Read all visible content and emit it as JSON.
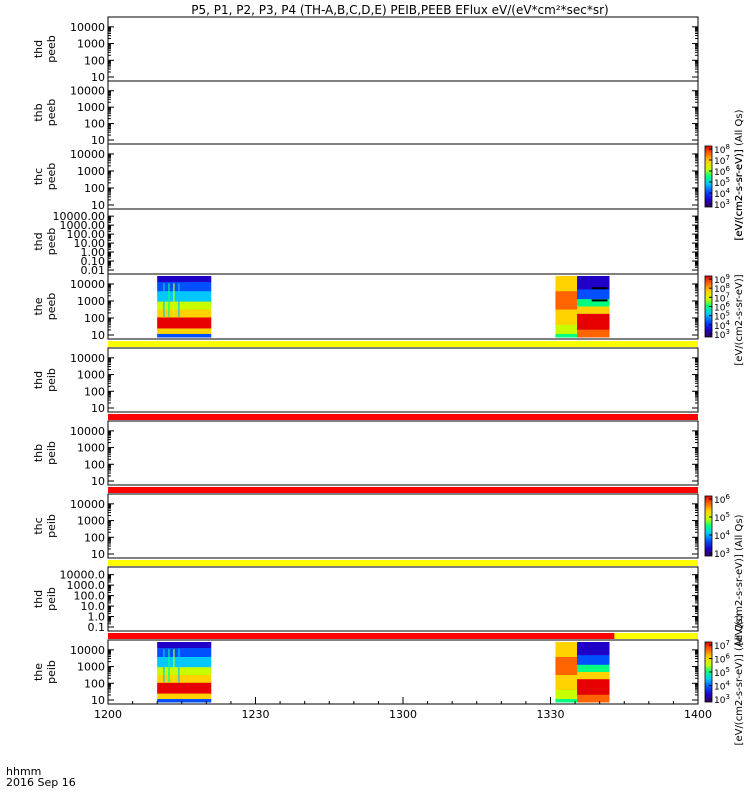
{
  "title": "P5, P1, P2, P3, P4 (TH-A,B,C,D,E) PEIB,PEEB EFlux eV/(eV*cm²*sec*sr)",
  "footer": {
    "time_label": "hhmm",
    "date_label": "2016 Sep 16"
  },
  "colorbar_units": {
    "thb_peeb": "[eV/(cm2-s-sr-eV)] (All Qs)",
    "thc_peeb": "[eV/(cm2-s-sr-eV)]",
    "the_peeb": "[eV/(cm2-s-sr-eV)]",
    "thc_peib": "[eV/(cm2-s-sr-eV)] (All Qs)",
    "the_peib": "[eV/(cm2-s-sr-eV)] (All Qs)"
  },
  "colors": {
    "flag_yellow": "#ffff00",
    "flag_red": "#ff0000",
    "colormap": [
      "#3a0064",
      "#1e00c8",
      "#0050ff",
      "#00c8ff",
      "#00ff80",
      "#c8ff00",
      "#ffd200",
      "#ff6400",
      "#e60000"
    ]
  },
  "chart_data": {
    "type": "heatmap",
    "xaxis": {
      "ticks": [
        "1200",
        "1230",
        "1300",
        "1330",
        "1400"
      ],
      "range": [
        "12:00",
        "14:00"
      ]
    },
    "panels": [
      {
        "label1": "thd",
        "label2": "peeb",
        "yscale": "log",
        "yticks": [
          "10",
          "100",
          "1000",
          "10000"
        ],
        "data": []
      },
      {
        "label1": "thb",
        "label2": "peeb",
        "yscale": "log",
        "yticks": [
          "10",
          "100",
          "1000",
          "10000"
        ],
        "data": []
      },
      {
        "label1": "thc",
        "label2": "peeb",
        "yscale": "log",
        "yticks": [
          "10",
          "100",
          "1000",
          "10000"
        ],
        "data": [],
        "colorbar": {
          "ticks": [
            "10^3",
            "10^4",
            "10^5",
            "10^6",
            "10^7",
            "10^8"
          ]
        }
      },
      {
        "label1": "thd",
        "label2": "peeb",
        "yscale": "log",
        "yticks": [
          "0.01",
          "0.10",
          "1.00",
          "10.00",
          "100.00",
          "1000.00",
          "10000.00"
        ],
        "data": []
      },
      {
        "label1": "the",
        "label2": "peeb",
        "yscale": "log",
        "yticks": [
          "10",
          "100",
          "1000",
          "10000"
        ],
        "data": [
          {
            "start": "12:10",
            "end": "12:21",
            "style": "substorm"
          },
          {
            "start": "13:31",
            "end": "13:42",
            "style": "dropout"
          }
        ],
        "colorbar": {
          "ticks": [
            "10^3",
            "10^4",
            "10^5",
            "10^6",
            "10^7",
            "10^8",
            "10^9"
          ]
        }
      },
      {
        "label1": "thd",
        "label2": "peib",
        "yscale": "log",
        "yticks": [
          "10",
          "100",
          "1000",
          "10000"
        ],
        "data": [],
        "flag_before": {
          "color": "yellow",
          "end": "14:00"
        }
      },
      {
        "label1": "thb",
        "label2": "peib",
        "yscale": "log",
        "yticks": [
          "10",
          "100",
          "1000",
          "10000"
        ],
        "data": [],
        "flag_before": {
          "color": "red",
          "end": "14:00"
        }
      },
      {
        "label1": "thc",
        "label2": "peib",
        "yscale": "log",
        "yticks": [
          "10",
          "100",
          "1000",
          "10000"
        ],
        "data": [],
        "flag_before": {
          "color": "red",
          "end": "14:00"
        },
        "colorbar": {
          "ticks": [
            "10^3",
            "10^4",
            "10^5",
            "10^6"
          ]
        }
      },
      {
        "label1": "thd",
        "label2": "peib",
        "yscale": "log",
        "yticks": [
          "0.1",
          "1.0",
          "10.0",
          "100.0",
          "1000.0",
          "10000.0"
        ],
        "data": [],
        "flag_before": {
          "color": "yellow",
          "end": "14:00"
        }
      },
      {
        "label1": "the",
        "label2": "peib",
        "yscale": "log",
        "yticks": [
          "10",
          "100",
          "1000",
          "10000"
        ],
        "data": [
          {
            "start": "12:10",
            "end": "12:21",
            "style": "substorm"
          },
          {
            "start": "13:31",
            "end": "13:42",
            "style": "dropout"
          }
        ],
        "flag_before": {
          "color": "red_then_yellow",
          "switch": "13:43",
          "end": "14:00"
        },
        "colorbar": {
          "ticks": [
            "10^3",
            "10^4",
            "10^5",
            "10^6",
            "10^7"
          ]
        }
      }
    ]
  }
}
